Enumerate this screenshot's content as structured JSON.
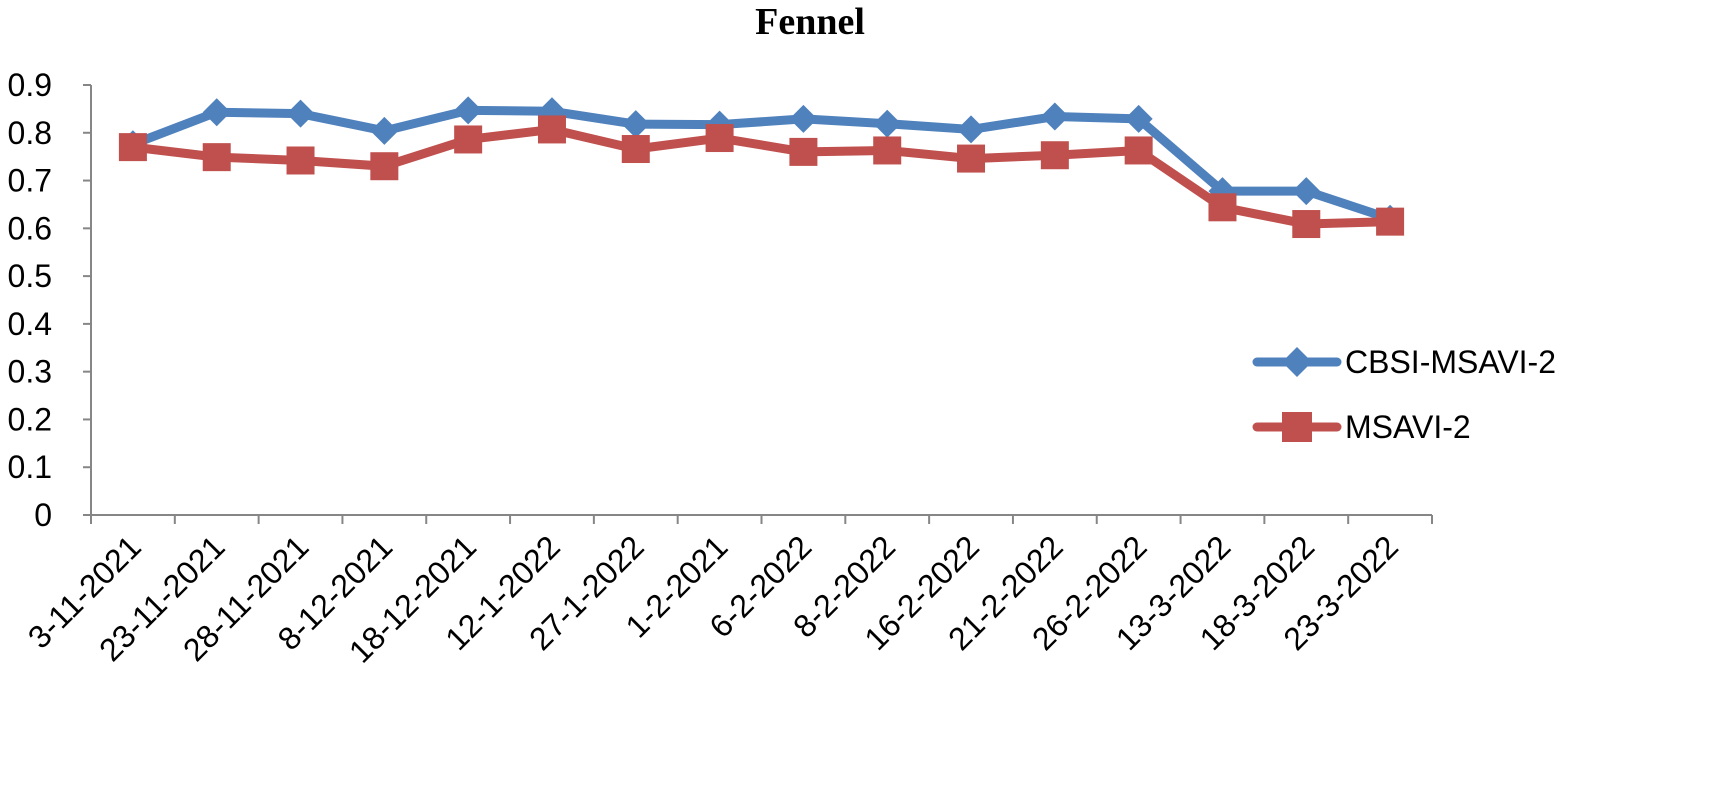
{
  "chart_data": {
    "type": "line",
    "title": "Fennel",
    "xlabel": "",
    "ylabel": "",
    "categories": [
      "3-11-2021",
      "23-11-2021",
      "28-11-2021",
      "8-12-2021",
      "18-12-2021",
      "12-1-2022",
      "27-1-2022",
      "1-2-2021",
      "6-2-2022",
      "8-2-2022",
      "16-2-2022",
      "21-2-2022",
      "26-2-2022",
      "13-3-2022",
      "18-3-2022",
      "23-3-2022"
    ],
    "ylim": [
      0,
      0.9
    ],
    "yticks": [
      "0",
      "0.1",
      "0.2",
      "0.3",
      "0.4",
      "0.5",
      "0.6",
      "0.7",
      "0.8",
      "0.9"
    ],
    "grid": false,
    "legend_position": "right",
    "series": [
      {
        "name": "CBSI-MSAVI-2",
        "color": "#4f81bd",
        "marker": "diamond",
        "values": [
          0.776,
          0.843,
          0.84,
          0.804,
          0.847,
          0.845,
          0.818,
          0.817,
          0.829,
          0.819,
          0.807,
          0.834,
          0.829,
          0.678,
          0.678,
          0.62
        ]
      },
      {
        "name": "MSAVI-2",
        "color": "#c0504d",
        "marker": "square",
        "values": [
          0.77,
          0.749,
          0.742,
          0.73,
          0.786,
          0.807,
          0.766,
          0.789,
          0.76,
          0.763,
          0.746,
          0.753,
          0.763,
          0.644,
          0.609,
          0.614
        ]
      }
    ]
  }
}
